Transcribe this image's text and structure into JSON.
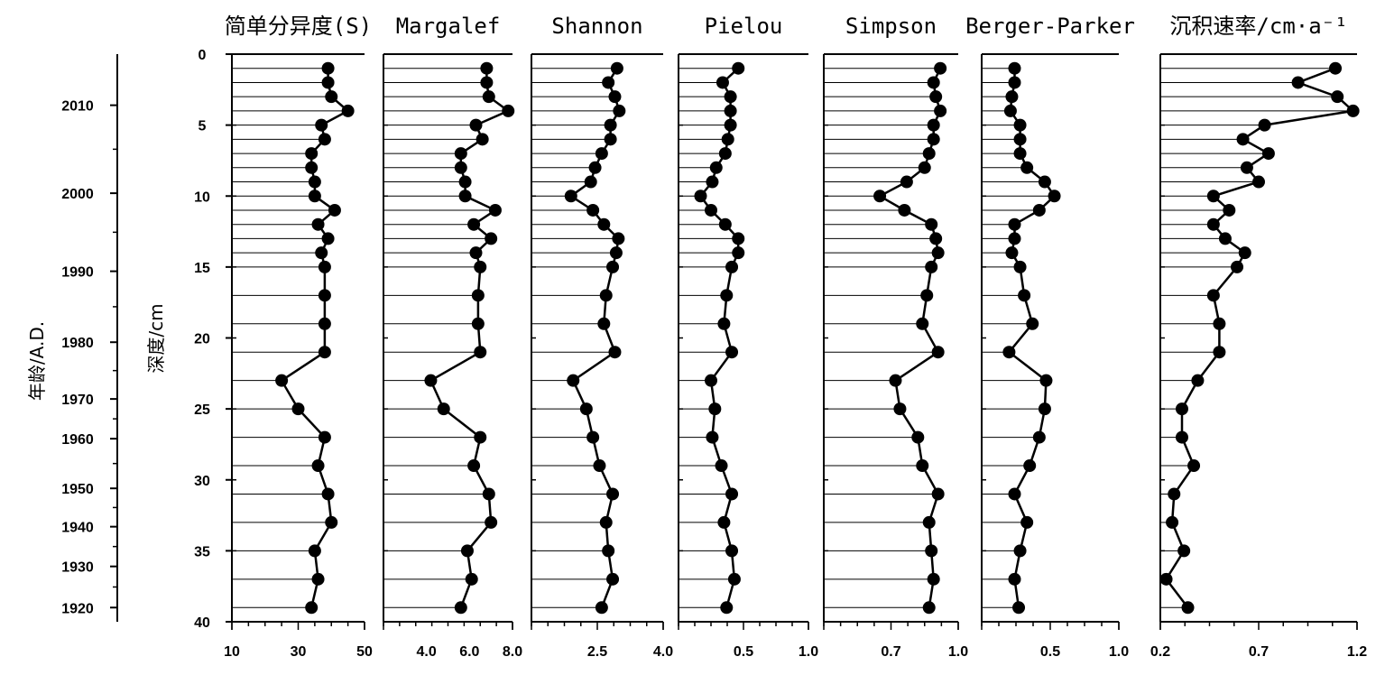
{
  "chart_data": {
    "type": "line",
    "depth_axis": {
      "label": "深度/cm",
      "ylim": [
        0,
        40
      ],
      "ticks": [
        0,
        5,
        10,
        15,
        20,
        25,
        30,
        35,
        40
      ]
    },
    "age_axis": {
      "label": "年龄/A.D.",
      "ticks": [
        {
          "year": 2010,
          "depth": 3.6
        },
        {
          "year": 2000,
          "depth": 9.8
        },
        {
          "year": 1990,
          "depth": 15.3
        },
        {
          "year": 1980,
          "depth": 20.3
        },
        {
          "year": 1970,
          "depth": 24.3
        },
        {
          "year": 1960,
          "depth": 27.1
        },
        {
          "year": 1950,
          "depth": 30.6
        },
        {
          "year": 1940,
          "depth": 33.3
        },
        {
          "year": 1930,
          "depth": 36.1
        },
        {
          "year": 1920,
          "depth": 39.0
        }
      ]
    },
    "depths": [
      1,
      2,
      3,
      4,
      5,
      6,
      7,
      8,
      9,
      10,
      11,
      12,
      13,
      14,
      15,
      17,
      19,
      21,
      23,
      25,
      27,
      29,
      31,
      33,
      35,
      37,
      39
    ],
    "panels": [
      {
        "title": "简单分异度(S)",
        "xlim": [
          10,
          50
        ],
        "ticks": [
          "10",
          "30",
          "50"
        ],
        "values": [
          39,
          39,
          40,
          45,
          37,
          38,
          34,
          34,
          35,
          35,
          41,
          36,
          39,
          37,
          38,
          38,
          38,
          38,
          25,
          30,
          38,
          36,
          39,
          40,
          35,
          36,
          34
        ]
      },
      {
        "title": "Margalef",
        "xlim": [
          2,
          8
        ],
        "ticks": [
          "4.0",
          "6.0",
          "8.0"
        ],
        "values": [
          6.8,
          6.8,
          6.9,
          7.8,
          6.3,
          6.6,
          5.6,
          5.6,
          5.8,
          5.8,
          7.2,
          6.2,
          7.0,
          6.3,
          6.5,
          6.4,
          6.4,
          6.5,
          4.2,
          4.8,
          6.5,
          6.2,
          6.9,
          7.0,
          5.9,
          6.1,
          5.6
        ]
      },
      {
        "title": "Shannon",
        "xlim": [
          1,
          4
        ],
        "ticks": [
          "2.5",
          "4.0"
        ],
        "values": [
          2.95,
          2.75,
          2.9,
          3.0,
          2.8,
          2.8,
          2.6,
          2.45,
          2.35,
          1.9,
          2.4,
          2.65,
          2.98,
          2.93,
          2.85,
          2.7,
          2.65,
          2.9,
          1.95,
          2.25,
          2.4,
          2.55,
          2.85,
          2.7,
          2.75,
          2.85,
          2.6
        ]
      },
      {
        "title": "Pielou",
        "xlim": [
          0,
          1
        ],
        "ticks": [
          "0.5",
          "1.0"
        ],
        "values": [
          0.46,
          0.34,
          0.4,
          0.4,
          0.4,
          0.38,
          0.36,
          0.29,
          0.26,
          0.17,
          0.25,
          0.36,
          0.46,
          0.46,
          0.41,
          0.37,
          0.35,
          0.41,
          0.25,
          0.28,
          0.26,
          0.33,
          0.41,
          0.35,
          0.41,
          0.43,
          0.37
        ]
      },
      {
        "title": "Simpson",
        "xlim": [
          0.4,
          1
        ],
        "ticks": [
          "0.7",
          "1.0"
        ],
        "values": [
          0.92,
          0.89,
          0.9,
          0.92,
          0.89,
          0.89,
          0.87,
          0.85,
          0.77,
          0.65,
          0.76,
          0.88,
          0.9,
          0.91,
          0.88,
          0.86,
          0.84,
          0.91,
          0.72,
          0.74,
          0.82,
          0.84,
          0.91,
          0.87,
          0.88,
          0.89,
          0.87
        ]
      },
      {
        "title": "Berger-Parker",
        "xlim": [
          0,
          1
        ],
        "ticks": [
          "0.5",
          "1.0"
        ],
        "values": [
          0.24,
          0.24,
          0.22,
          0.21,
          0.28,
          0.28,
          0.28,
          0.33,
          0.46,
          0.53,
          0.42,
          0.24,
          0.24,
          0.22,
          0.28,
          0.31,
          0.37,
          0.2,
          0.47,
          0.46,
          0.42,
          0.35,
          0.24,
          0.33,
          0.28,
          0.24,
          0.27
        ]
      },
      {
        "title": "沉积速率/cm·a⁻¹",
        "xlim": [
          0.2,
          1.2
        ],
        "ticks": [
          "0.2",
          "0.7",
          "1.2"
        ],
        "values": [
          1.09,
          0.9,
          1.1,
          1.18,
          0.73,
          0.62,
          0.75,
          0.64,
          0.7,
          0.47,
          0.55,
          0.47,
          0.53,
          0.63,
          0.59,
          0.47,
          0.5,
          0.5,
          0.39,
          0.31,
          0.31,
          0.37,
          0.27,
          0.26,
          0.32,
          0.23,
          0.34
        ]
      }
    ]
  }
}
